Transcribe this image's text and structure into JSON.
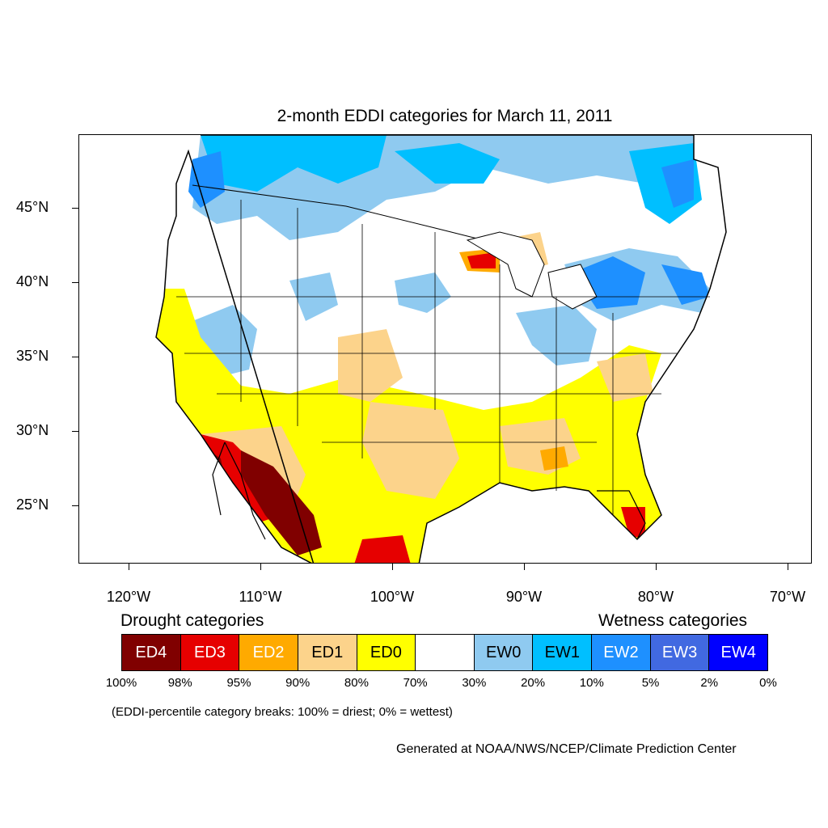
{
  "title": "2-month EDDI categories for March 11, 2011",
  "lat_labels": [
    "45°N",
    "40°N",
    "35°N",
    "30°N",
    "25°N"
  ],
  "lon_labels": [
    "120°W",
    "110°W",
    "100°W",
    "90°W",
    "80°W",
    "70°W"
  ],
  "legend": {
    "drought_heading": "Drought categories",
    "wetness_heading": "Wetness categories",
    "categories": [
      {
        "label": "ED4",
        "color": "#800000",
        "text_color": "#ffffff"
      },
      {
        "label": "ED3",
        "color": "#e60000",
        "text_color": "#ffffff"
      },
      {
        "label": "ED2",
        "color": "#ffaa00",
        "text_color": "#ffffff"
      },
      {
        "label": "ED1",
        "color": "#fcd38b",
        "text_color": "#000000"
      },
      {
        "label": "ED0",
        "color": "#ffff00",
        "text_color": "#000000"
      },
      {
        "label": "",
        "color": "#ffffff",
        "text_color": "#000000"
      },
      {
        "label": "EW0",
        "color": "#8fcaf0",
        "text_color": "#000000"
      },
      {
        "label": "EW1",
        "color": "#00bfff",
        "text_color": "#000000"
      },
      {
        "label": "EW2",
        "color": "#1e90ff",
        "text_color": "#ffffff"
      },
      {
        "label": "EW3",
        "color": "#4169e1",
        "text_color": "#ffffff"
      },
      {
        "label": "EW4",
        "color": "#0000ff",
        "text_color": "#ffffff"
      }
    ],
    "percent_breaks": [
      "100%",
      "98%",
      "95%",
      "90%",
      "80%",
      "70%",
      "30%",
      "20%",
      "10%",
      "5%",
      "2%",
      "0%"
    ]
  },
  "note": "(EDDI-percentile category breaks: 100% = driest; 0% = wettest)",
  "credit": "Generated at NOAA/NWS/NCEP/Climate Prediction Center"
}
